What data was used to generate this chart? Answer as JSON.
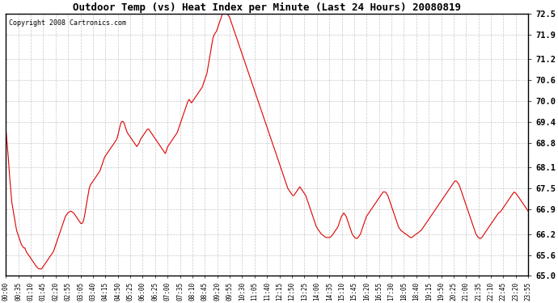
{
  "title": "Outdoor Temp (vs) Heat Index per Minute (Last 24 Hours) 20080819",
  "copyright": "Copyright 2008 Cartronics.com",
  "line_color": "#dd0000",
  "bg_color": "#ffffff",
  "grid_color": "#bbbbbb",
  "ylim": [
    65.0,
    72.5
  ],
  "yticks": [
    65.0,
    65.6,
    66.2,
    66.9,
    67.5,
    68.1,
    68.8,
    69.4,
    70.0,
    70.6,
    71.2,
    71.9,
    72.5
  ],
  "x_labels": [
    "00:00",
    "00:35",
    "01:10",
    "01:45",
    "02:20",
    "02:55",
    "03:05",
    "03:40",
    "04:15",
    "04:50",
    "05:25",
    "06:00",
    "06:25",
    "07:00",
    "07:35",
    "08:10",
    "08:45",
    "09:20",
    "09:55",
    "10:30",
    "11:05",
    "11:40",
    "12:15",
    "12:50",
    "13:25",
    "14:00",
    "14:35",
    "15:10",
    "15:45",
    "16:20",
    "16:55",
    "17:30",
    "18:05",
    "18:40",
    "19:15",
    "19:50",
    "20:25",
    "21:00",
    "21:35",
    "22:10",
    "22:45",
    "23:20",
    "23:55"
  ],
  "y_values": [
    69.2,
    68.8,
    68.4,
    67.9,
    67.5,
    67.1,
    66.9,
    66.7,
    66.5,
    66.3,
    66.2,
    66.1,
    66.0,
    65.9,
    65.85,
    65.8,
    65.8,
    65.7,
    65.65,
    65.6,
    65.55,
    65.5,
    65.45,
    65.4,
    65.35,
    65.3,
    65.25,
    65.22,
    65.2,
    65.2,
    65.2,
    65.25,
    65.3,
    65.35,
    65.4,
    65.45,
    65.5,
    65.55,
    65.6,
    65.65,
    65.7,
    65.8,
    65.9,
    66.0,
    66.1,
    66.2,
    66.3,
    66.4,
    66.5,
    66.6,
    66.7,
    66.75,
    66.8,
    66.82,
    66.85,
    66.85,
    66.82,
    66.8,
    66.75,
    66.7,
    66.65,
    66.6,
    66.55,
    66.5,
    66.5,
    66.55,
    66.7,
    66.9,
    67.1,
    67.3,
    67.5,
    67.6,
    67.65,
    67.7,
    67.75,
    67.8,
    67.85,
    67.9,
    67.95,
    68.0,
    68.1,
    68.2,
    68.3,
    68.4,
    68.45,
    68.5,
    68.55,
    68.6,
    68.65,
    68.7,
    68.75,
    68.8,
    68.85,
    68.9,
    69.0,
    69.15,
    69.3,
    69.4,
    69.42,
    69.4,
    69.3,
    69.2,
    69.1,
    69.05,
    69.0,
    68.95,
    68.9,
    68.85,
    68.8,
    68.75,
    68.7,
    68.75,
    68.8,
    68.9,
    68.95,
    69.0,
    69.05,
    69.1,
    69.15,
    69.2,
    69.2,
    69.15,
    69.1,
    69.05,
    69.0,
    68.95,
    68.9,
    68.85,
    68.8,
    68.75,
    68.7,
    68.65,
    68.6,
    68.55,
    68.5,
    68.6,
    68.7,
    68.75,
    68.8,
    68.85,
    68.9,
    68.95,
    69.0,
    69.05,
    69.1,
    69.2,
    69.3,
    69.4,
    69.5,
    69.6,
    69.7,
    69.8,
    69.9,
    70.0,
    70.05,
    70.0,
    69.95,
    70.0,
    70.05,
    70.1,
    70.15,
    70.2,
    70.25,
    70.3,
    70.35,
    70.4,
    70.5,
    70.6,
    70.7,
    70.8,
    71.0,
    71.2,
    71.4,
    71.6,
    71.8,
    71.9,
    71.95,
    72.0,
    72.1,
    72.2,
    72.3,
    72.4,
    72.5,
    72.55,
    72.6,
    72.55,
    72.5,
    72.45,
    72.4,
    72.3,
    72.2,
    72.1,
    72.0,
    71.9,
    71.8,
    71.7,
    71.6,
    71.5,
    71.4,
    71.3,
    71.2,
    71.1,
    71.0,
    70.9,
    70.8,
    70.7,
    70.6,
    70.5,
    70.4,
    70.3,
    70.2,
    70.1,
    70.0,
    69.9,
    69.8,
    69.7,
    69.6,
    69.5,
    69.4,
    69.3,
    69.2,
    69.1,
    69.0,
    68.9,
    68.8,
    68.7,
    68.6,
    68.5,
    68.4,
    68.3,
    68.2,
    68.1,
    68.0,
    67.9,
    67.8,
    67.7,
    67.6,
    67.5,
    67.45,
    67.4,
    67.35,
    67.3,
    67.3,
    67.35,
    67.4,
    67.45,
    67.5,
    67.55,
    67.5,
    67.45,
    67.4,
    67.35,
    67.3,
    67.2,
    67.1,
    67.0,
    66.9,
    66.8,
    66.7,
    66.6,
    66.5,
    66.4,
    66.35,
    66.3,
    66.25,
    66.2,
    66.18,
    66.15,
    66.12,
    66.1,
    66.1,
    66.1,
    66.1,
    66.12,
    66.15,
    66.2,
    66.25,
    66.3,
    66.35,
    66.4,
    66.5,
    66.6,
    66.7,
    66.75,
    66.8,
    66.75,
    66.7,
    66.6,
    66.5,
    66.4,
    66.3,
    66.2,
    66.15,
    66.1,
    66.08,
    66.07,
    66.1,
    66.15,
    66.2,
    66.3,
    66.4,
    66.5,
    66.6,
    66.7,
    66.75,
    66.8,
    66.85,
    66.9,
    66.95,
    67.0,
    67.05,
    67.1,
    67.15,
    67.2,
    67.25,
    67.3,
    67.35,
    67.4,
    67.4,
    67.4,
    67.35,
    67.3,
    67.2,
    67.1,
    67.0,
    66.9,
    66.8,
    66.7,
    66.6,
    66.5,
    66.4,
    66.35,
    66.3,
    66.28,
    66.25,
    66.22,
    66.2,
    66.18,
    66.15,
    66.12,
    66.1,
    66.1,
    66.12,
    66.15,
    66.18,
    66.2,
    66.22,
    66.25,
    66.28,
    66.3,
    66.35,
    66.4,
    66.45,
    66.5,
    66.55,
    66.6,
    66.65,
    66.7,
    66.75,
    66.8,
    66.85,
    66.9,
    66.95,
    67.0,
    67.05,
    67.1,
    67.15,
    67.2,
    67.25,
    67.3,
    67.35,
    67.4,
    67.45,
    67.5,
    67.55,
    67.6,
    67.65,
    67.7,
    67.72,
    67.7,
    67.65,
    67.6,
    67.5,
    67.4,
    67.3,
    67.2,
    67.1,
    67.0,
    66.9,
    66.8,
    66.7,
    66.6,
    66.5,
    66.4,
    66.3,
    66.2,
    66.15,
    66.1,
    66.08,
    66.07,
    66.1,
    66.15,
    66.2,
    66.25,
    66.3,
    66.35,
    66.4,
    66.45,
    66.5,
    66.55,
    66.6,
    66.65,
    66.7,
    66.75,
    66.8,
    66.82,
    66.85,
    66.9,
    66.95,
    67.0,
    67.05,
    67.1,
    67.15,
    67.2,
    67.25,
    67.3,
    67.35,
    67.4,
    67.38,
    67.35,
    67.3,
    67.25,
    67.2,
    67.15,
    67.1,
    67.05,
    67.0,
    66.95,
    66.9,
    66.85
  ]
}
